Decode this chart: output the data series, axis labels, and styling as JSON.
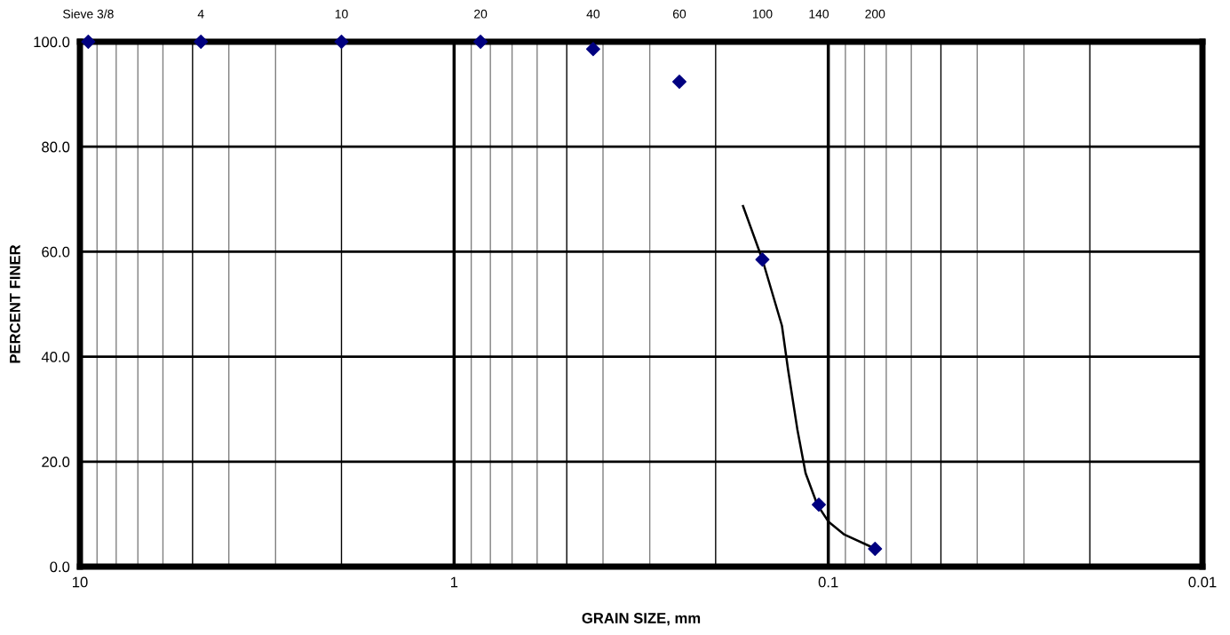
{
  "chart_data": {
    "type": "scatter",
    "xlabel": "GRAIN SIZE, mm",
    "ylabel": "PERCENT FINER",
    "log": "x",
    "grid": true,
    "legend": false,
    "xlim": [
      10,
      0.01
    ],
    "xticks": [
      10,
      1,
      0.1,
      0.01
    ],
    "ylim": [
      0,
      100
    ],
    "yticks": [
      {
        "value": 0,
        "label": "0.0"
      },
      {
        "value": 20,
        "label": "20.0"
      },
      {
        "value": 40,
        "label": "40.0"
      },
      {
        "value": 60,
        "label": "60.0"
      },
      {
        "value": 80,
        "label": "80.0"
      },
      {
        "value": 100,
        "label": "100.0"
      }
    ],
    "annotations": [
      "Sieve 3/8",
      "4",
      "10",
      "20",
      "40",
      "60",
      "100",
      "140",
      "200"
    ],
    "series": [
      {
        "marker": "diamond",
        "color": "#000080",
        "x": [
          9.5,
          4.75,
          2.0,
          0.85,
          0.425,
          0.25,
          0.15,
          0.106,
          0.075
        ],
        "values": [
          100,
          100,
          100,
          100,
          98.6,
          92.4,
          58.5,
          11.8,
          3.4
        ]
      },
      {
        "type": "line",
        "marker": "none",
        "line_style": "solid",
        "color": "#000000",
        "x": [
          0.169,
          0.15,
          0.133,
          0.128,
          0.121,
          0.115,
          0.107,
          0.1,
          0.0906,
          0.0759
        ],
        "values": [
          68.7,
          58.5,
          45.9,
          37.4,
          26.2,
          17.8,
          11.8,
          8.6,
          6.1,
          3.6
        ]
      }
    ]
  }
}
